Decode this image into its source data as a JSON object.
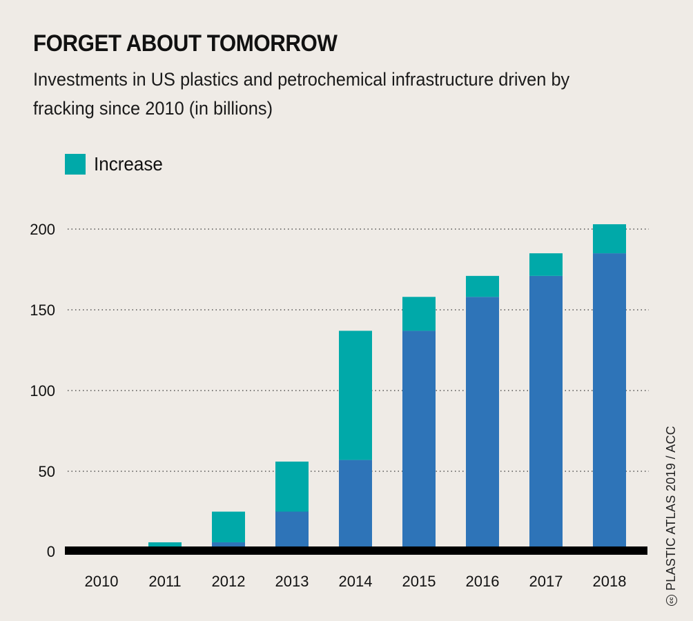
{
  "header": {
    "title": "FORGET ABOUT TOMORROW",
    "subtitle": "Investments in US plastics and petrochemical infrastructure driven by fracking since 2010 (in billions)"
  },
  "legend": {
    "label": "Increase"
  },
  "credit": {
    "text": "PLASTIC ATLAS 2019 / ACC",
    "icon": "cc-icon"
  },
  "colors": {
    "base": "#2e74b8",
    "increase": "#00a9a9",
    "axis": "#000000",
    "background": "#efebe6"
  },
  "chart_data": {
    "type": "bar",
    "stacked": true,
    "categories": [
      "2010",
      "2011",
      "2012",
      "2013",
      "2014",
      "2015",
      "2016",
      "2017",
      "2018"
    ],
    "series": [
      {
        "name": "",
        "values": [
          2,
          2,
          6,
          25,
          57,
          137,
          158,
          171,
          185
        ]
      },
      {
        "name": "Increase",
        "values": [
          0,
          4,
          19,
          31,
          80,
          21,
          13,
          14,
          18
        ]
      }
    ],
    "totals": [
      2,
      6,
      25,
      56,
      137,
      158,
      171,
      185,
      203
    ],
    "yticks": [
      0,
      50,
      100,
      150,
      200
    ],
    "ylim": [
      0,
      210
    ],
    "grid": "dotted horizontal",
    "legend_position": "top-left",
    "title": "FORGET ABOUT TOMORROW",
    "xlabel": "",
    "ylabel": ""
  }
}
